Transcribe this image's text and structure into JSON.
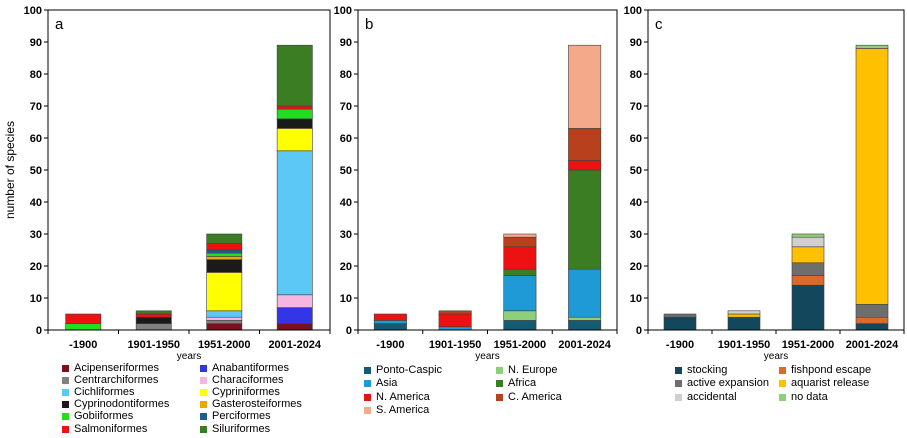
{
  "chart_data": [
    {
      "panel_label": "a",
      "type": "bar",
      "stacked": true,
      "ylabel": "number of species",
      "xlabel": "years",
      "ylim": [
        0,
        100
      ],
      "yticks": [
        0,
        10,
        20,
        30,
        40,
        50,
        60,
        70,
        80,
        90,
        100
      ],
      "categories": [
        "-1900",
        "1901-1950",
        "1951-2000",
        "2001-2024"
      ],
      "grid": false,
      "legend_position": "bottom",
      "legend_columns": 2,
      "series": [
        {
          "name": "Acipenseriformes",
          "color": "#7a1020",
          "values": [
            0,
            0,
            2,
            2
          ]
        },
        {
          "name": "Anabantiformes",
          "color": "#3535e8",
          "values": [
            0,
            0,
            0,
            5
          ]
        },
        {
          "name": "Centrarchiformes",
          "color": "#808080",
          "values": [
            0,
            2,
            1,
            0
          ]
        },
        {
          "name": "Characiformes",
          "color": "#f7b6e0",
          "values": [
            0,
            0,
            1,
            4
          ]
        },
        {
          "name": "Cichliformes",
          "color": "#5cc8f5",
          "values": [
            0,
            0,
            2,
            45
          ]
        },
        {
          "name": "Cypriniformes",
          "color": "#ffff00",
          "values": [
            0,
            0,
            12,
            7
          ]
        },
        {
          "name": "Cyprinodontiformes",
          "color": "#1a1a1a",
          "values": [
            0,
            2,
            4,
            3
          ]
        },
        {
          "name": "Gasterosteiformes",
          "color": "#e8a800",
          "values": [
            0,
            0,
            1,
            0
          ]
        },
        {
          "name": "Gobiiformes",
          "color": "#22dd22",
          "values": [
            2,
            0,
            1,
            3
          ]
        },
        {
          "name": "Perciformes",
          "color": "#1e5c8c",
          "values": [
            0,
            0,
            1,
            0
          ]
        },
        {
          "name": "Salmoniformes",
          "color": "#ee1111",
          "values": [
            3,
            1,
            2,
            1
          ]
        },
        {
          "name": "Siluriformes",
          "color": "#3a7d23",
          "values": [
            0,
            1,
            3,
            19
          ]
        }
      ]
    },
    {
      "panel_label": "b",
      "type": "bar",
      "stacked": true,
      "xlabel": "years",
      "ylim": [
        0,
        100
      ],
      "yticks": [
        0,
        10,
        20,
        30,
        40,
        50,
        60,
        70,
        80,
        90,
        100
      ],
      "categories": [
        "-1900",
        "1901-1950",
        "1951-2000",
        "2001-2024"
      ],
      "grid": false,
      "legend_position": "bottom",
      "legend_columns": 2,
      "series": [
        {
          "name": "Ponto-Caspic",
          "color": "#155a73",
          "values": [
            2,
            0,
            3,
            3
          ]
        },
        {
          "name": "N. Europe",
          "color": "#8ed07a",
          "values": [
            0,
            0,
            3,
            1
          ]
        },
        {
          "name": "Asia",
          "color": "#1f9ad6",
          "values": [
            1,
            1,
            11,
            15
          ]
        },
        {
          "name": "Africa",
          "color": "#3a7d23",
          "values": [
            0,
            0,
            2,
            31
          ]
        },
        {
          "name": "N. America",
          "color": "#ee1111",
          "values": [
            2,
            4,
            7,
            3
          ]
        },
        {
          "name": "C. America",
          "color": "#b8401d",
          "values": [
            0,
            1,
            3,
            10
          ]
        },
        {
          "name": "S. America",
          "color": "#f3a98a",
          "values": [
            0,
            0,
            1,
            26
          ]
        }
      ]
    },
    {
      "panel_label": "c",
      "type": "bar",
      "stacked": true,
      "xlabel": "years",
      "ylim": [
        0,
        100
      ],
      "yticks": [
        0,
        10,
        20,
        30,
        40,
        50,
        60,
        70,
        80,
        90,
        100
      ],
      "categories": [
        "-1900",
        "1901-1950",
        "1951-2000",
        "2001-2024"
      ],
      "grid": false,
      "legend_position": "bottom",
      "legend_columns": 2,
      "series": [
        {
          "name": "stocking",
          "color": "#13475c",
          "values": [
            4,
            4,
            14,
            2
          ]
        },
        {
          "name": "fishpond escape",
          "color": "#d96a2a",
          "values": [
            0,
            0,
            3,
            2
          ]
        },
        {
          "name": "active expansion",
          "color": "#6e6e6e",
          "values": [
            1,
            0,
            4,
            4
          ]
        },
        {
          "name": "aquarist release",
          "color": "#ffc000",
          "values": [
            0,
            1,
            5,
            80
          ]
        },
        {
          "name": "accidental",
          "color": "#d0d0d0",
          "values": [
            0,
            1,
            3,
            0
          ]
        },
        {
          "name": "no data",
          "color": "#8ed07a",
          "values": [
            0,
            0,
            1,
            1
          ]
        }
      ]
    }
  ]
}
